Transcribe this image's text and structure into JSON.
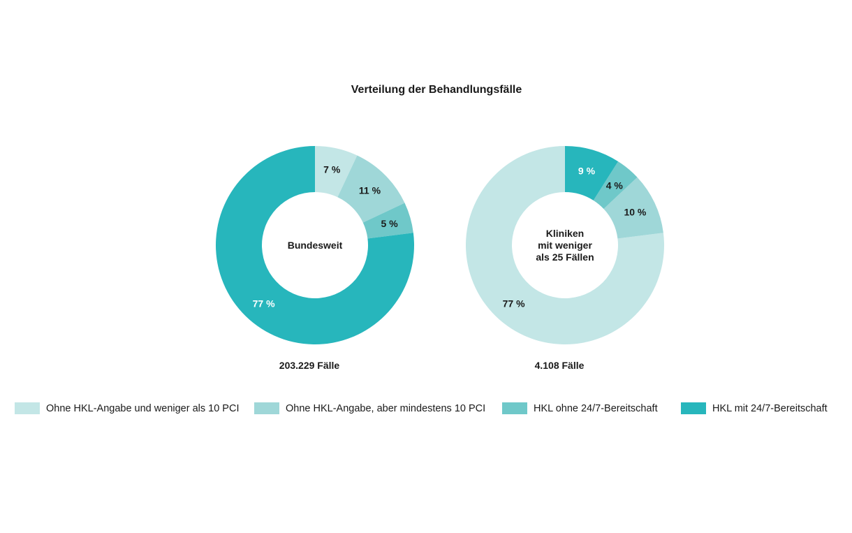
{
  "chart_data": {
    "type": "pie",
    "title": "Verteilung der Behandlungsfälle",
    "categories": [
      "Ohne HKL-Angabe und weniger als 10 PCI",
      "Ohne HKL-Angabe, aber mindestens 10 PCI",
      "HKL ohne 24/7-Bereitschaft",
      "HKL mit 24/7-Bereitschaft"
    ],
    "colors": [
      "#c3e6e6",
      "#9fd7d8",
      "#6fc8c9",
      "#27b6bc"
    ],
    "label_colors": [
      "#1a1a1a",
      "#1a1a1a",
      "#1a1a1a",
      "#ffffff"
    ],
    "legend_position": "bottom",
    "charts": [
      {
        "center_label": [
          "Bundesweit"
        ],
        "total_label": "203.229 Fälle",
        "values": [
          7,
          11,
          5,
          77
        ],
        "value_labels": [
          "7 %",
          "11 %",
          "5 %",
          "77 %"
        ],
        "direction": "clockwise",
        "label_colors": [
          "#1a1a1a",
          "#1a1a1a",
          "#1a1a1a",
          "#ffffff"
        ]
      },
      {
        "center_label": [
          "Kliniken",
          "mit weniger",
          "als 25 Fällen"
        ],
        "total_label": "4.108 Fälle",
        "values": [
          77,
          10,
          4,
          9
        ],
        "value_labels": [
          "77 %",
          "10 %",
          "4 %",
          "9 %"
        ],
        "direction": "counterclockwise",
        "label_colors": [
          "#1a1a1a",
          "#1a1a1a",
          "#1a1a1a",
          "#ffffff"
        ]
      }
    ]
  }
}
